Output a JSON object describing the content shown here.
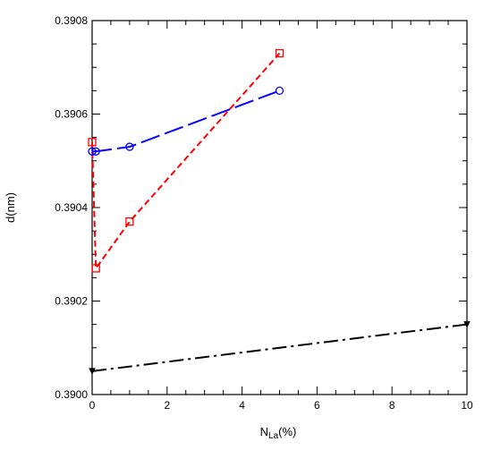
{
  "chart_data": {
    "type": "line",
    "title": "",
    "xlabel": {
      "main": "N",
      "sub": "La",
      "suffix": "(%)"
    },
    "ylabel": "d(nm)",
    "xlim": [
      0,
      10
    ],
    "ylim": [
      0.39,
      0.3908
    ],
    "grid": false,
    "x_ticks": [
      0,
      2,
      4,
      6,
      8,
      10
    ],
    "x_tick_labels": [
      "0",
      "2",
      "4",
      "6",
      "8",
      "10"
    ],
    "y_ticks": [
      0.39,
      0.3902,
      0.3904,
      0.3906,
      0.3908
    ],
    "y_tick_labels": [
      "0.3900",
      "0.3902",
      "0.3904",
      "0.3906",
      "0.3908"
    ],
    "series": [
      {
        "color": "#ff0000",
        "marker": "square",
        "dash": "short",
        "x": [
          0,
          0.1,
          1,
          5
        ],
        "y": [
          0.39054,
          0.39027,
          0.39037,
          0.39073
        ]
      },
      {
        "color": "#0000ff",
        "marker": "circle",
        "dash": "long",
        "x": [
          0,
          0.1,
          1,
          5
        ],
        "y": [
          0.39052,
          0.39052,
          0.39053,
          0.39065
        ]
      },
      {
        "color": "#000000",
        "marker": "triangle",
        "dash": "dash-dot",
        "x": [
          0,
          10
        ],
        "y": [
          0.39005,
          0.39015
        ]
      }
    ]
  }
}
